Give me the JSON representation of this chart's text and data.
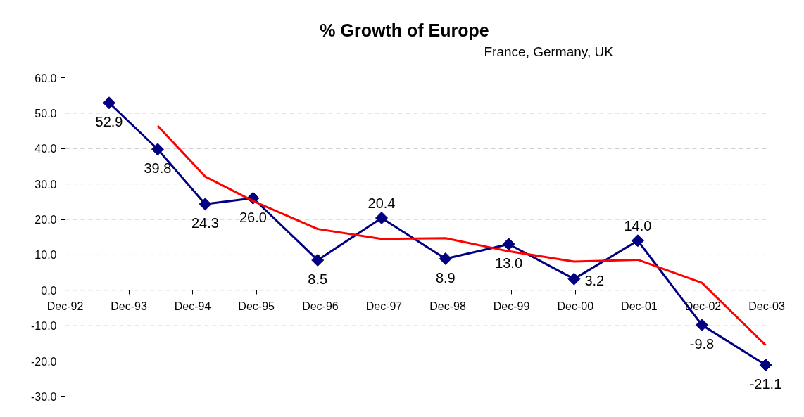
{
  "chart_data": {
    "type": "line",
    "title": "% Growth of Europe",
    "subtitle": "France, Germany, UK",
    "x": [
      "1993-08-10",
      "1994-05-15",
      "1995-02-11",
      "1995-11-12",
      "1996-11-16",
      "1997-11-17",
      "1998-11-18",
      "1999-11-15",
      "2000-11-23",
      "2001-11-23",
      "2002-11-25",
      "2003-11-25"
    ],
    "xlim": [
      "1992-12",
      "2003-12"
    ],
    "xticks": [
      {
        "value": "1992-12",
        "label": "Dec-92"
      },
      {
        "value": "1993-12",
        "label": "Dec-93"
      },
      {
        "value": "1994-12",
        "label": "Dec-94"
      },
      {
        "value": "1995-12",
        "label": "Dec-95"
      },
      {
        "value": "1996-12",
        "label": "Dec-96"
      },
      {
        "value": "1997-12",
        "label": "Dec-97"
      },
      {
        "value": "1998-12",
        "label": "Dec-98"
      },
      {
        "value": "1999-12",
        "label": "Dec-99"
      },
      {
        "value": "2000-12",
        "label": "Dec-00"
      },
      {
        "value": "2001-12",
        "label": "Dec-01"
      },
      {
        "value": "2002-12",
        "label": "Dec-02"
      },
      {
        "value": "2003-12",
        "label": "Dec-03"
      }
    ],
    "ylim": [
      -30,
      60
    ],
    "yticks": [
      {
        "value": -30,
        "label": "-30.0"
      },
      {
        "value": -20,
        "label": "-20.0"
      },
      {
        "value": -10,
        "label": "-10.0"
      },
      {
        "value": 0,
        "label": "0.0"
      },
      {
        "value": 10,
        "label": "10.0"
      },
      {
        "value": 20,
        "label": "20.0"
      },
      {
        "value": 30,
        "label": "30.0"
      },
      {
        "value": 40,
        "label": "40.0"
      },
      {
        "value": 50,
        "label": "50.0"
      },
      {
        "value": 60,
        "label": "60.0"
      }
    ],
    "grid": "y",
    "marker": "diamond",
    "line_style": "solid",
    "series": [
      {
        "color": "#000080",
        "values": [
          52.9,
          39.8,
          24.3,
          26.0,
          8.5,
          20.4,
          8.9,
          13.0,
          3.2,
          14.0,
          -9.8,
          -21.1
        ],
        "value_labels": [
          "52.9",
          "39.8",
          "24.3",
          "26.0",
          "8.5",
          "20.4",
          "8.9",
          "13.0",
          "3.2",
          "14.0",
          "-9.8",
          "-21.1"
        ]
      },
      {
        "type": "line",
        "color": "#ff0000",
        "marker": "none",
        "x": [
          "1994-05-15",
          "1995-02-11",
          "1995-11-12",
          "1996-11-16",
          "1997-11-17",
          "1998-11-18",
          "1999-11-15",
          "2000-11-23",
          "2001-11-23",
          "2002-11-25",
          "2003-11-25"
        ],
        "values": [
          46.4,
          32.1,
          25.2,
          17.3,
          14.5,
          14.7,
          11.0,
          8.1,
          8.6,
          2.1,
          -15.5
        ]
      }
    ]
  }
}
